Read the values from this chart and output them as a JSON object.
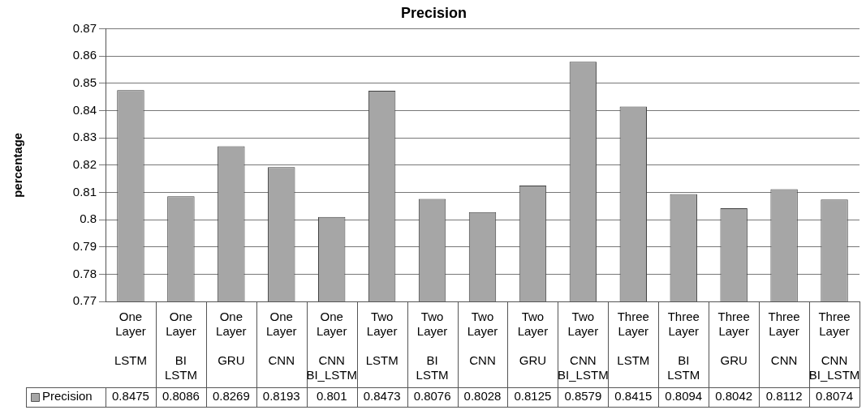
{
  "chart_data": {
    "type": "bar",
    "title": "Precision",
    "ylabel": "percentage",
    "categories": [
      "One Layer LSTM",
      "One Layer BI LSTM",
      "One Layer GRU",
      "One Layer CNN",
      "One Layer CNN BI_LSTM",
      "Two Layer LSTM",
      "Two Layer BI LSTM",
      "Two Layer CNN",
      "Two Layer GRU",
      "Two Layer CNN BI_LSTM",
      "Three Layer LSTM",
      "Three Layer BI LSTM",
      "Three Layer GRU",
      "Three Layer CNN",
      "Three Layer CNN BI_LSTM"
    ],
    "series": [
      {
        "name": "Precision",
        "color": "#a6a6a6",
        "values": [
          0.8475,
          0.8086,
          0.8269,
          0.8193,
          0.801,
          0.8473,
          0.8076,
          0.8028,
          0.8125,
          0.8579,
          0.8415,
          0.8094,
          0.8042,
          0.8112,
          0.8074
        ]
      }
    ],
    "ylim": [
      0.77,
      0.87
    ],
    "yticks": [
      0.77,
      0.78,
      0.79,
      0.8,
      0.81,
      0.82,
      0.83,
      0.84,
      0.85,
      0.86,
      0.87
    ],
    "grid": "y",
    "data_labels": true
  }
}
